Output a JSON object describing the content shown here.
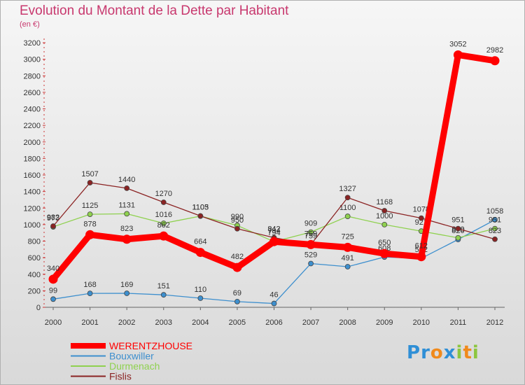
{
  "chart_data": {
    "type": "line",
    "title": "Evolution du Montant de la Dette par Habitant",
    "subtitle": "(en €)",
    "x": [
      "2000",
      "2001",
      "2002",
      "2003",
      "2004",
      "2005",
      "2006",
      "2007",
      "2008",
      "2009",
      "2010",
      "2011",
      "2012"
    ],
    "ylim": [
      0,
      3200
    ],
    "yticks": [
      0,
      200,
      400,
      600,
      800,
      1000,
      1200,
      1400,
      1600,
      1800,
      2000,
      2200,
      2400,
      2600,
      2800,
      3000,
      3200
    ],
    "grid": false,
    "legend_position": "bottom-left",
    "series": [
      {
        "name": "WERENTZHOUSE",
        "color": "#ff0000",
        "values": [
          340,
          878,
          823,
          862,
          664,
          482,
          794,
          759,
          725,
          650,
          612,
          3052,
          2982
        ]
      },
      {
        "name": "Bouxwiller",
        "color": "#3d8fce",
        "values": [
          99,
          168,
          169,
          151,
          110,
          69,
          46,
          529,
          491,
          608,
          592,
          820,
          1058
        ]
      },
      {
        "name": "Durmenach",
        "color": "#8fd14f",
        "values": [
          973,
          1125,
          1131,
          1016,
          1103,
          990,
          794,
          909,
          1100,
          1000,
          921,
          840,
          951
        ]
      },
      {
        "name": "Fislis",
        "color": "#8b2323",
        "values": [
          982,
          1507,
          1440,
          1270,
          1105,
          950,
          842,
          759,
          1327,
          1168,
          1078,
          951,
          823
        ]
      }
    ]
  },
  "brand": {
    "logo_letters": [
      "P",
      "r",
      "o",
      "x",
      "i",
      "t",
      "i"
    ],
    "logo_colors": [
      "#2f8fd6",
      "#2f8fd6",
      "#f08a1c",
      "#2f8fd6",
      "#8cc63f",
      "#f08a1c",
      "#8cc63f"
    ]
  }
}
